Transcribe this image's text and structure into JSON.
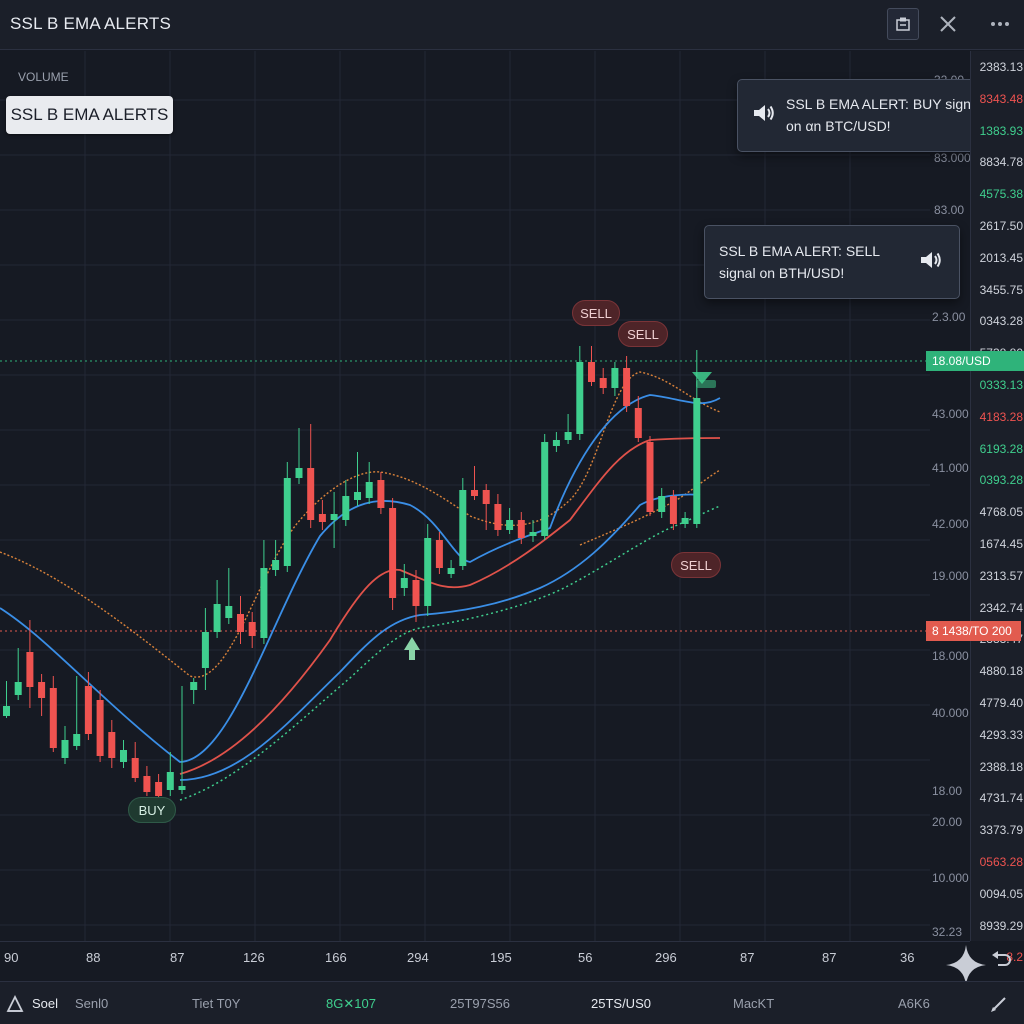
{
  "app": {
    "title": "SSL B EMA ALERTS"
  },
  "chart": {
    "pane_label": "VOLUME",
    "indicator_badge": "SSL B EMA ALERTS",
    "colors": {
      "bull": "#3fcf8e",
      "bear": "#ef5350",
      "blue": "#3a8ee6",
      "red_line": "#e0524a",
      "orange": "#d9823a",
      "green_dotted": "#3fcf8e"
    }
  },
  "alerts": [
    {
      "text": "SSL B EMA ALERT: BUY signal on αn BTC/USD!",
      "icon": "speaker-icon"
    },
    {
      "text": "SSL B EMA ALERT: SELL signal on BTH/USD!",
      "icon": "speaker-icon"
    }
  ],
  "signals": {
    "sell": "SELL",
    "buy": "BUY"
  },
  "price_scale": {
    "values": [
      {
        "v": "2383.13",
        "c": ""
      },
      {
        "v": "8343.48",
        "c": "red"
      },
      {
        "v": "1383.93",
        "c": "green"
      },
      {
        "v": "8834.78",
        "c": ""
      },
      {
        "v": "4575.38",
        "c": "green"
      },
      {
        "v": "2617.50",
        "c": ""
      },
      {
        "v": "2013.45",
        "c": ""
      },
      {
        "v": "3455.75",
        "c": ""
      },
      {
        "v": "0343.28",
        "c": ""
      },
      {
        "v": "5738.80",
        "c": ""
      },
      {
        "v": "0333.13",
        "c": "green"
      },
      {
        "v": "4183.28",
        "c": "red"
      },
      {
        "v": "6193.28",
        "c": "green"
      },
      {
        "v": "0393.28",
        "c": "green"
      },
      {
        "v": "4768.05",
        "c": ""
      },
      {
        "v": "1674.45",
        "c": ""
      },
      {
        "v": "2313.57",
        "c": ""
      },
      {
        "v": "2342.74",
        "c": ""
      },
      {
        "v": "2383.47",
        "c": ""
      },
      {
        "v": "4880.18",
        "c": ""
      },
      {
        "v": "4779.40",
        "c": ""
      },
      {
        "v": "4293.33",
        "c": ""
      },
      {
        "v": "2388.18",
        "c": ""
      },
      {
        "v": "4731.74",
        "c": ""
      },
      {
        "v": "3373.79",
        "c": ""
      },
      {
        "v": "0563.28",
        "c": "red"
      },
      {
        "v": "0094.05",
        "c": ""
      },
      {
        "v": "8939.29",
        "c": ""
      },
      {
        "v": "8.2",
        "c": "red"
      }
    ],
    "inner_ticks": [
      "32.00",
      "83.000",
      "83.00",
      "2.3.00",
      "43.000",
      "41.000",
      "42.000",
      "19.000",
      "18.000",
      "40.000",
      "18.00",
      "20.00",
      "10.000",
      "32.23"
    ],
    "price_tag_green": "18.08/USD",
    "price_tag_red": "8 1438/TO 200"
  },
  "time_axis": [
    "90",
    "88",
    "87",
    "126",
    "166",
    "294",
    "195",
    "56",
    "296",
    "87",
    "87",
    "36"
  ],
  "bottom_bar": {
    "items": [
      {
        "label": "Soel",
        "style": "white"
      },
      {
        "label": "Senl0",
        "style": ""
      },
      {
        "label": "Tiet T0Y",
        "style": ""
      },
      {
        "label": "8G✕107",
        "style": "green"
      },
      {
        "label": "25T97S56",
        "style": ""
      },
      {
        "label": "25TS/US0",
        "style": "white"
      },
      {
        "label": "MacKT",
        "style": ""
      },
      {
        "label": "A6K6",
        "style": ""
      }
    ]
  },
  "icons": {
    "layout": "layout-icon",
    "close": "close-icon",
    "more": "more-icon",
    "sparkle": "sparkle-icon",
    "undo": "undo-icon",
    "pencil": "pencil-icon",
    "bottom_left": "chart-type-icon"
  },
  "candles": [
    [
      706,
      716,
      681,
      718,
      "g"
    ],
    [
      682,
      695,
      648,
      700,
      "g"
    ],
    [
      652,
      687,
      620,
      708,
      "r"
    ],
    [
      682,
      698,
      674,
      716,
      "r"
    ],
    [
      688,
      748,
      676,
      752,
      "r"
    ],
    [
      740,
      758,
      726,
      764,
      "g"
    ],
    [
      734,
      746,
      676,
      750,
      "g"
    ],
    [
      686,
      734,
      672,
      740,
      "r"
    ],
    [
      700,
      756,
      690,
      762,
      "r"
    ],
    [
      732,
      758,
      720,
      768,
      "r"
    ],
    [
      750,
      762,
      740,
      768,
      "g"
    ],
    [
      758,
      778,
      742,
      782,
      "r"
    ],
    [
      776,
      792,
      766,
      796,
      "r"
    ],
    [
      782,
      796,
      774,
      804,
      "r"
    ],
    [
      772,
      790,
      752,
      796,
      "g"
    ],
    [
      786,
      790,
      686,
      794,
      "g"
    ],
    [
      682,
      690,
      678,
      704,
      "g"
    ],
    [
      632,
      668,
      608,
      690,
      "g"
    ],
    [
      604,
      632,
      580,
      638,
      "g"
    ],
    [
      606,
      618,
      568,
      624,
      "g"
    ],
    [
      614,
      632,
      596,
      644,
      "r"
    ],
    [
      622,
      636,
      612,
      648,
      "r"
    ],
    [
      568,
      638,
      540,
      644,
      "g"
    ],
    [
      560,
      570,
      540,
      576,
      "g"
    ],
    [
      478,
      566,
      462,
      572,
      "g"
    ],
    [
      468,
      478,
      428,
      484,
      "g"
    ],
    [
      468,
      520,
      424,
      528,
      "r"
    ],
    [
      514,
      522,
      500,
      530,
      "r"
    ],
    [
      514,
      520,
      492,
      548,
      "g"
    ],
    [
      496,
      520,
      480,
      526,
      "g"
    ],
    [
      492,
      500,
      452,
      506,
      "g"
    ],
    [
      482,
      498,
      462,
      504,
      "g"
    ],
    [
      480,
      508,
      472,
      514,
      "r"
    ],
    [
      508,
      598,
      498,
      610,
      "r"
    ],
    [
      578,
      588,
      564,
      596,
      "g"
    ],
    [
      580,
      606,
      570,
      622,
      "r"
    ],
    [
      538,
      606,
      524,
      616,
      "g"
    ],
    [
      540,
      568,
      532,
      574,
      "r"
    ],
    [
      568,
      574,
      560,
      578,
      "g"
    ],
    [
      490,
      566,
      478,
      570,
      "g"
    ],
    [
      490,
      496,
      466,
      500,
      "r"
    ],
    [
      490,
      504,
      484,
      530,
      "r"
    ],
    [
      504,
      530,
      494,
      536,
      "r"
    ],
    [
      520,
      530,
      508,
      534,
      "g"
    ],
    [
      520,
      538,
      512,
      544,
      "r"
    ],
    [
      532,
      536,
      520,
      542,
      "g"
    ],
    [
      442,
      536,
      434,
      540,
      "g"
    ],
    [
      440,
      446,
      432,
      452,
      "g"
    ],
    [
      432,
      440,
      414,
      444,
      "g"
    ],
    [
      362,
      434,
      346,
      440,
      "g"
    ],
    [
      362,
      382,
      346,
      386,
      "r"
    ],
    [
      378,
      388,
      368,
      394,
      "r"
    ],
    [
      368,
      388,
      362,
      396,
      "g"
    ],
    [
      368,
      406,
      356,
      412,
      "r"
    ],
    [
      408,
      438,
      396,
      442,
      "r"
    ],
    [
      442,
      512,
      436,
      516,
      "r"
    ],
    [
      496,
      512,
      488,
      518,
      "g"
    ],
    [
      496,
      524,
      490,
      530,
      "r"
    ],
    [
      518,
      524,
      512,
      528,
      "g"
    ],
    [
      398,
      524,
      350,
      528,
      "g"
    ]
  ]
}
